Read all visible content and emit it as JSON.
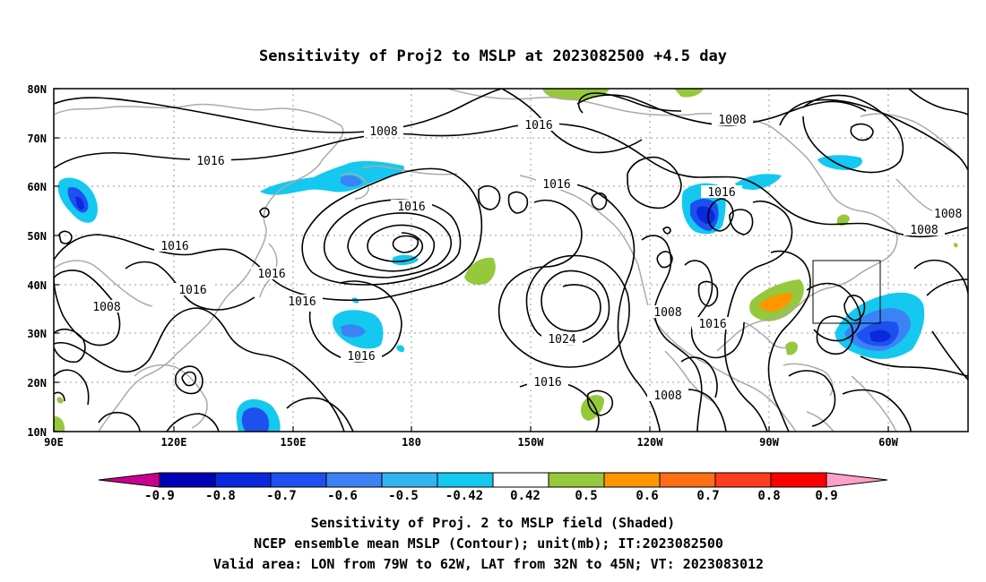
{
  "title": "Sensitivity of Proj2 to MSLP at 2023082500 +4.5 day",
  "map": {
    "lat_labels": [
      "80N",
      "70N",
      "60N",
      "50N",
      "40N",
      "30N",
      "20N",
      "10N"
    ],
    "lon_labels": [
      "90E",
      "120E",
      "150E",
      "180",
      "150W",
      "120W",
      "90W",
      "60W"
    ],
    "contour_labels": [
      "1008",
      "1016",
      "1016",
      "1008",
      "1016",
      "1016",
      "1008",
      "1016",
      "1008",
      "1016",
      "1016",
      "1016",
      "1024",
      "1016",
      "1008",
      "1016",
      "1016",
      "1008",
      "1016",
      "1008"
    ],
    "valid_box": {
      "lon_range": [
        "79W",
        "62W"
      ],
      "lat_range": [
        "32N",
        "45N"
      ]
    }
  },
  "colorbar": {
    "labels": [
      "-0.9",
      "-0.8",
      "-0.7",
      "-0.6",
      "-0.5",
      "-0.42",
      "0.42",
      "0.5",
      "0.6",
      "0.7",
      "0.8",
      "0.9"
    ],
    "colors": [
      "#c8008c",
      "#0000b4",
      "#0a28dc",
      "#1e50f0",
      "#3c82f5",
      "#32b4f0",
      "#14c8f0",
      "#ffffff",
      "#96c83c",
      "#ff9600",
      "#ff6e14",
      "#ff3c1e",
      "#ff0000",
      "#ffa0c8"
    ]
  },
  "captions": {
    "line1": "Sensitivity of Proj. 2 to MSLP field (Shaded)",
    "line2": "NCEP ensemble mean MSLP (Contour); unit(mb); IT:2023082500",
    "line3": "Valid area: LON from 79W to 62W, LAT from 32N to 45N; VT: 2023083012"
  }
}
